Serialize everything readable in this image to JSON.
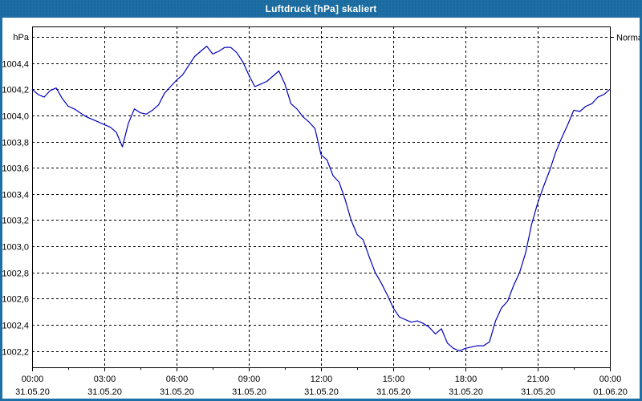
{
  "window": {
    "title": "Luftdruck [hPa] skaliert"
  },
  "colors": {
    "titlebar_background": "#1d6fa5",
    "window_border": "#1d6fa5",
    "title_text": "#ffffff",
    "plot_background": "#ffffff",
    "grid_line": "#000000",
    "axis_text": "#000000",
    "series_line": "#0000bb"
  },
  "chart_data": {
    "type": "line",
    "title": "Luftdruck [hPa] skaliert",
    "ylabel": "hPa",
    "unit_label": "hPa",
    "x_unit": "hours",
    "x_start_hour": 0,
    "x_step_hours": 0.25,
    "xlim_hours": [
      0,
      24
    ],
    "ylim": [
      1002.075,
      1004.68
    ],
    "grid": true,
    "normal_line": {
      "value": 1004.6,
      "label": "Normal"
    },
    "y_ticks": [
      {
        "value": 1004.4,
        "label": "1004,4"
      },
      {
        "value": 1004.2,
        "label": "1004,2"
      },
      {
        "value": 1004.0,
        "label": "1004,0"
      },
      {
        "value": 1003.8,
        "label": "1003,8"
      },
      {
        "value": 1003.6,
        "label": "1003,6"
      },
      {
        "value": 1003.4,
        "label": "1003,4"
      },
      {
        "value": 1003.2,
        "label": "1003,2"
      },
      {
        "value": 1003.0,
        "label": "1003,0"
      },
      {
        "value": 1002.8,
        "label": "1002,8"
      },
      {
        "value": 1002.6,
        "label": "1002,6"
      },
      {
        "value": 1002.4,
        "label": "1002,4"
      },
      {
        "value": 1002.2,
        "label": "1002,2"
      }
    ],
    "x_major_ticks": [
      {
        "hour": 0,
        "time": "00:00",
        "date": "31.05.20"
      },
      {
        "hour": 3,
        "time": "03:00",
        "date": "31.05.20"
      },
      {
        "hour": 6,
        "time": "06:00",
        "date": "31.05.20"
      },
      {
        "hour": 9,
        "time": "09:00",
        "date": "31.05.20"
      },
      {
        "hour": 12,
        "time": "12:00",
        "date": "31.05.20"
      },
      {
        "hour": 15,
        "time": "15:00",
        "date": "31.05.20"
      },
      {
        "hour": 18,
        "time": "18:00",
        "date": "31.05.20"
      },
      {
        "hour": 21,
        "time": "21:00",
        "date": "31.05.20"
      },
      {
        "hour": 24,
        "time": "00:00",
        "date": "01.06.20"
      }
    ],
    "x_minor_tick_hours": [
      1.5,
      4.5,
      7.5,
      10.5,
      13.5,
      16.5,
      19.5,
      22.5
    ],
    "series": [
      {
        "name": "Luftdruck",
        "values": [
          1004.2,
          1004.16,
          1004.14,
          1004.19,
          1004.21,
          1004.13,
          1004.07,
          1004.05,
          1004.02,
          1003.99,
          1003.97,
          1003.95,
          1003.93,
          1003.91,
          1003.87,
          1003.76,
          1003.94,
          1004.05,
          1004.02,
          1004.01,
          1004.04,
          1004.08,
          1004.17,
          1004.22,
          1004.27,
          1004.31,
          1004.38,
          1004.45,
          1004.49,
          1004.53,
          1004.47,
          1004.49,
          1004.52,
          1004.52,
          1004.48,
          1004.41,
          1004.31,
          1004.22,
          1004.24,
          1004.26,
          1004.3,
          1004.34,
          1004.24,
          1004.09,
          1004.05,
          1003.99,
          1003.95,
          1003.9,
          1003.7,
          1003.66,
          1003.54,
          1003.49,
          1003.36,
          1003.2,
          1003.09,
          1003.05,
          1002.92,
          1002.8,
          1002.72,
          1002.63,
          1002.53,
          1002.46,
          1002.44,
          1002.42,
          1002.43,
          1002.41,
          1002.38,
          1002.33,
          1002.37,
          1002.26,
          1002.22,
          1002.2,
          1002.22,
          1002.23,
          1002.24,
          1002.24,
          1002.27,
          1002.43,
          1002.53,
          1002.58,
          1002.7,
          1002.8,
          1002.95,
          1003.17,
          1003.33,
          1003.46,
          1003.58,
          1003.72,
          1003.83,
          1003.93,
          1004.04,
          1004.03,
          1004.07,
          1004.09,
          1004.14,
          1004.16,
          1004.2
        ]
      }
    ]
  }
}
